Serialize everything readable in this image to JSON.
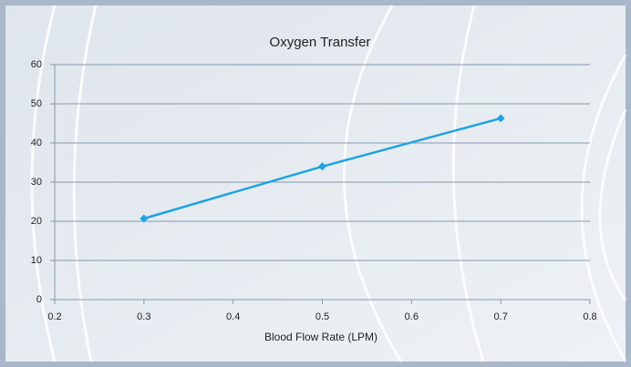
{
  "chart_data": {
    "type": "line",
    "title": "Oxygen Transfer",
    "x_label": "Blood Flow Rate (LPM)",
    "x": [
      0.3,
      0.5,
      0.7
    ],
    "series": [
      {
        "name": "Oxygen Transfer",
        "color": "#1ea3e0",
        "values": [
          20.7,
          34.0,
          46.3
        ]
      }
    ],
    "xlim": [
      0.2,
      0.8
    ],
    "xticks": [
      0.2,
      0.3,
      0.4,
      0.5,
      0.6,
      0.7,
      0.8
    ],
    "ylim": [
      0,
      60
    ],
    "yticks": [
      0,
      10,
      20,
      30,
      40,
      50,
      60
    ],
    "grid": true
  }
}
